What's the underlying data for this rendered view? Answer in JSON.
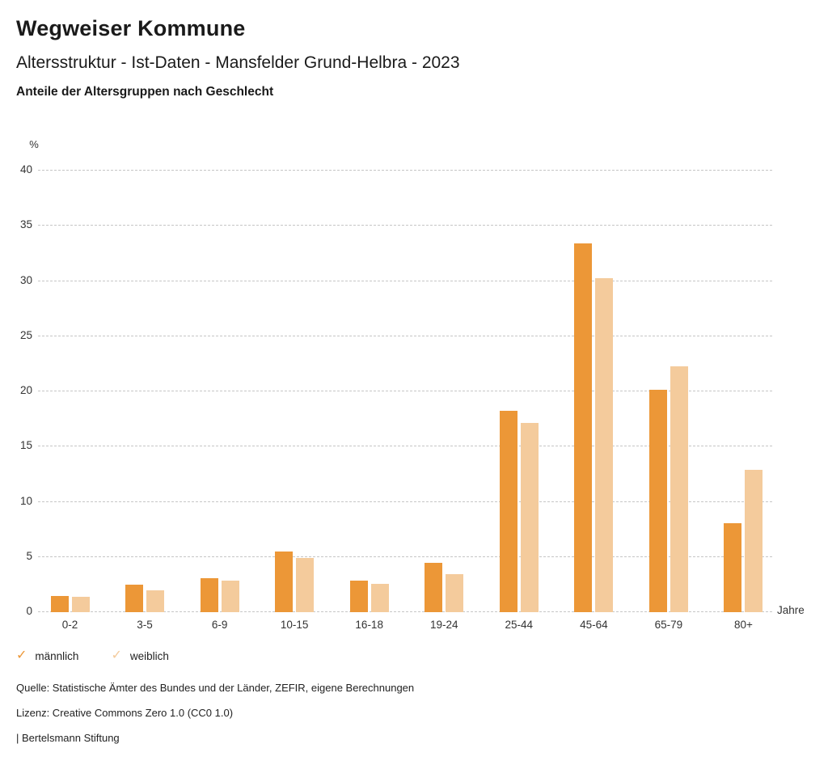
{
  "header": {
    "title": "Wegweiser Kommune",
    "subtitle": "Altersstruktur - Ist-Daten - Mansfelder Grund-Helbra - 2023",
    "subheading": "Anteile der Altersgruppen nach Geschlecht"
  },
  "chart_data": {
    "type": "bar",
    "title": "Anteile der Altersgruppen nach Geschlecht",
    "y_unit_label": "%",
    "x_unit_label": "Jahre",
    "categories": [
      "0-2",
      "3-5",
      "6-9",
      "10-15",
      "16-18",
      "19-24",
      "25-44",
      "45-64",
      "65-79",
      "80+"
    ],
    "series": [
      {
        "name": "männlich",
        "color": "#EC9737",
        "values": [
          1.4,
          2.4,
          3.0,
          5.4,
          2.8,
          4.4,
          18.2,
          33.3,
          20.1,
          8.0
        ]
      },
      {
        "name": "weiblich",
        "color": "#F4CB9C",
        "values": [
          1.3,
          1.9,
          2.8,
          4.8,
          2.5,
          3.4,
          17.1,
          30.2,
          22.2,
          12.8
        ]
      }
    ],
    "ylim": [
      0,
      40
    ],
    "ytick_step": 5,
    "grid": "horizontal-dotted",
    "legend_position": "bottom-left"
  },
  "legend": {
    "check_glyph": "✓",
    "items": [
      {
        "label": "männlich",
        "color": "#EC9737"
      },
      {
        "label": "weiblich",
        "color": "#F4CB9C"
      }
    ]
  },
  "footer": {
    "source": "Quelle: Statistische Ämter des Bundes und der Länder, ZEFIR, eigene Berechnungen",
    "license": "Lizenz: Creative Commons Zero 1.0 (CC0 1.0)",
    "attribution": "| Bertelsmann Stiftung"
  }
}
